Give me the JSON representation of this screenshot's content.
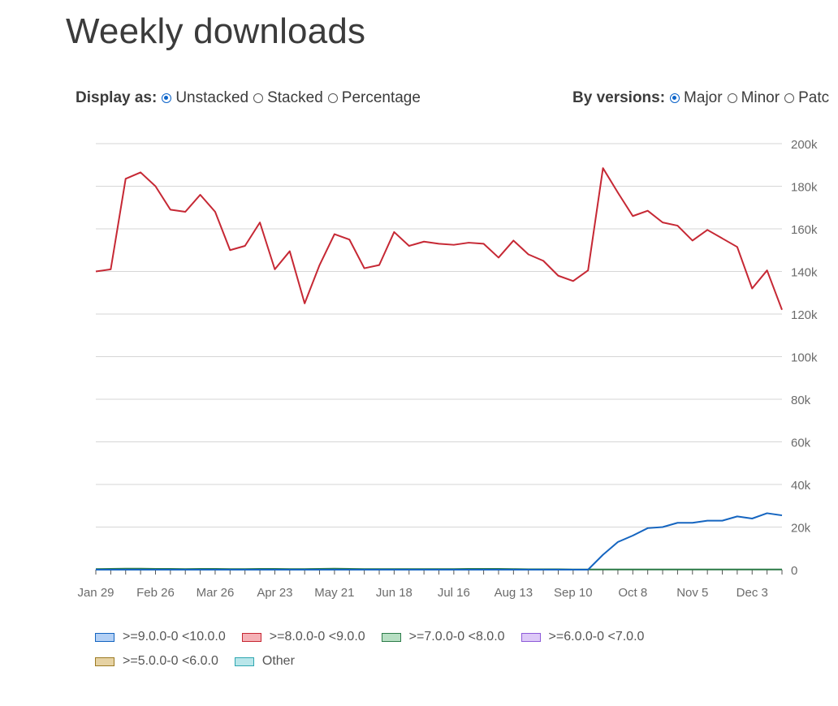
{
  "page_title": "Weekly downloads",
  "display_as": {
    "label": "Display as:",
    "options": [
      {
        "label": "Unstacked",
        "checked": true
      },
      {
        "label": "Stacked",
        "checked": false
      },
      {
        "label": "Percentage",
        "checked": false
      }
    ]
  },
  "by_versions": {
    "label": "By versions:",
    "options": [
      {
        "label": "Major",
        "checked": true
      },
      {
        "label": "Minor",
        "checked": false
      },
      {
        "label": "Patc",
        "checked": false
      }
    ]
  },
  "chart_data": {
    "type": "line",
    "title": "",
    "xlabel": "",
    "ylabel": "",
    "ylim": [
      0,
      200000
    ],
    "yticks": [
      0,
      20000,
      40000,
      60000,
      80000,
      100000,
      120000,
      140000,
      160000,
      180000,
      200000
    ],
    "ytick_labels": [
      "0",
      "20k",
      "40k",
      "60k",
      "80k",
      "100k",
      "120k",
      "140k",
      "160k",
      "180k",
      "200k"
    ],
    "grid": true,
    "legend_position": "bottom-left",
    "x_tick_labels": [
      {
        "index": 0,
        "label": "Jan 29"
      },
      {
        "index": 4,
        "label": "Feb 26"
      },
      {
        "index": 8,
        "label": "Mar 26"
      },
      {
        "index": 12,
        "label": "Apr 23"
      },
      {
        "index": 16,
        "label": "May 21"
      },
      {
        "index": 20,
        "label": "Jun 18"
      },
      {
        "index": 24,
        "label": "Jul 16"
      },
      {
        "index": 28,
        "label": "Aug 13"
      },
      {
        "index": 32,
        "label": "Sep 10"
      },
      {
        "index": 36,
        "label": "Oct 8"
      },
      {
        "index": 40,
        "label": "Nov 5"
      },
      {
        "index": 44,
        "label": "Dec 3"
      }
    ],
    "series": [
      {
        "name": ">=9.0.0-0 <10.0.0",
        "color": "#1565c0",
        "fill": "#b3d0f5",
        "values": [
          0,
          0,
          0,
          0,
          0,
          0,
          0,
          0,
          0,
          0,
          0,
          0,
          0,
          0,
          0,
          0,
          0,
          0,
          0,
          0,
          0,
          0,
          0,
          0,
          0,
          0,
          0,
          0,
          0,
          0,
          0,
          0,
          0,
          0,
          7000,
          13000,
          16000,
          19500,
          20000,
          22000,
          22000,
          23000,
          23000,
          25000,
          24000,
          26500,
          25500
        ]
      },
      {
        "name": ">=8.0.0-0 <9.0.0",
        "color": "#c62834",
        "fill": "#f5b1b6",
        "values": [
          140000,
          141000,
          183500,
          186500,
          180000,
          169000,
          168000,
          176000,
          168000,
          150000,
          152000,
          163000,
          141000,
          149500,
          125000,
          143000,
          157500,
          155000,
          141500,
          143000,
          158500,
          152000,
          154000,
          153000,
          152500,
          153500,
          153000,
          146500,
          154500,
          148000,
          145000,
          138000,
          135500,
          140500,
          188500,
          177000,
          166000,
          168500,
          163000,
          161500,
          154500,
          159500,
          155500,
          151500,
          132000,
          140500,
          122000
        ]
      },
      {
        "name": ">=7.0.0-0 <8.0.0",
        "color": "#2e7d4a",
        "fill": "#b7dfc3",
        "values": [
          300,
          400,
          500,
          500,
          400,
          400,
          300,
          400,
          400,
          300,
          300,
          400,
          400,
          300,
          300,
          400,
          500,
          400,
          300,
          300,
          300,
          300,
          300,
          300,
          300,
          400,
          400,
          400,
          300,
          200,
          200,
          200,
          100,
          100,
          100,
          100,
          100,
          100,
          100,
          100,
          100,
          100,
          100,
          100,
          100,
          100,
          100
        ]
      },
      {
        "name": ">=6.0.0-0 <7.0.0",
        "color": "#8e5bd9",
        "fill": "#ddc9f7",
        "values": []
      },
      {
        "name": ">=5.0.0-0 <6.0.0",
        "color": "#9c7a22",
        "fill": "#e6d2a3",
        "values": []
      },
      {
        "name": "Other",
        "color": "#2ea7b0",
        "fill": "#b9e6ea",
        "values": []
      }
    ]
  }
}
